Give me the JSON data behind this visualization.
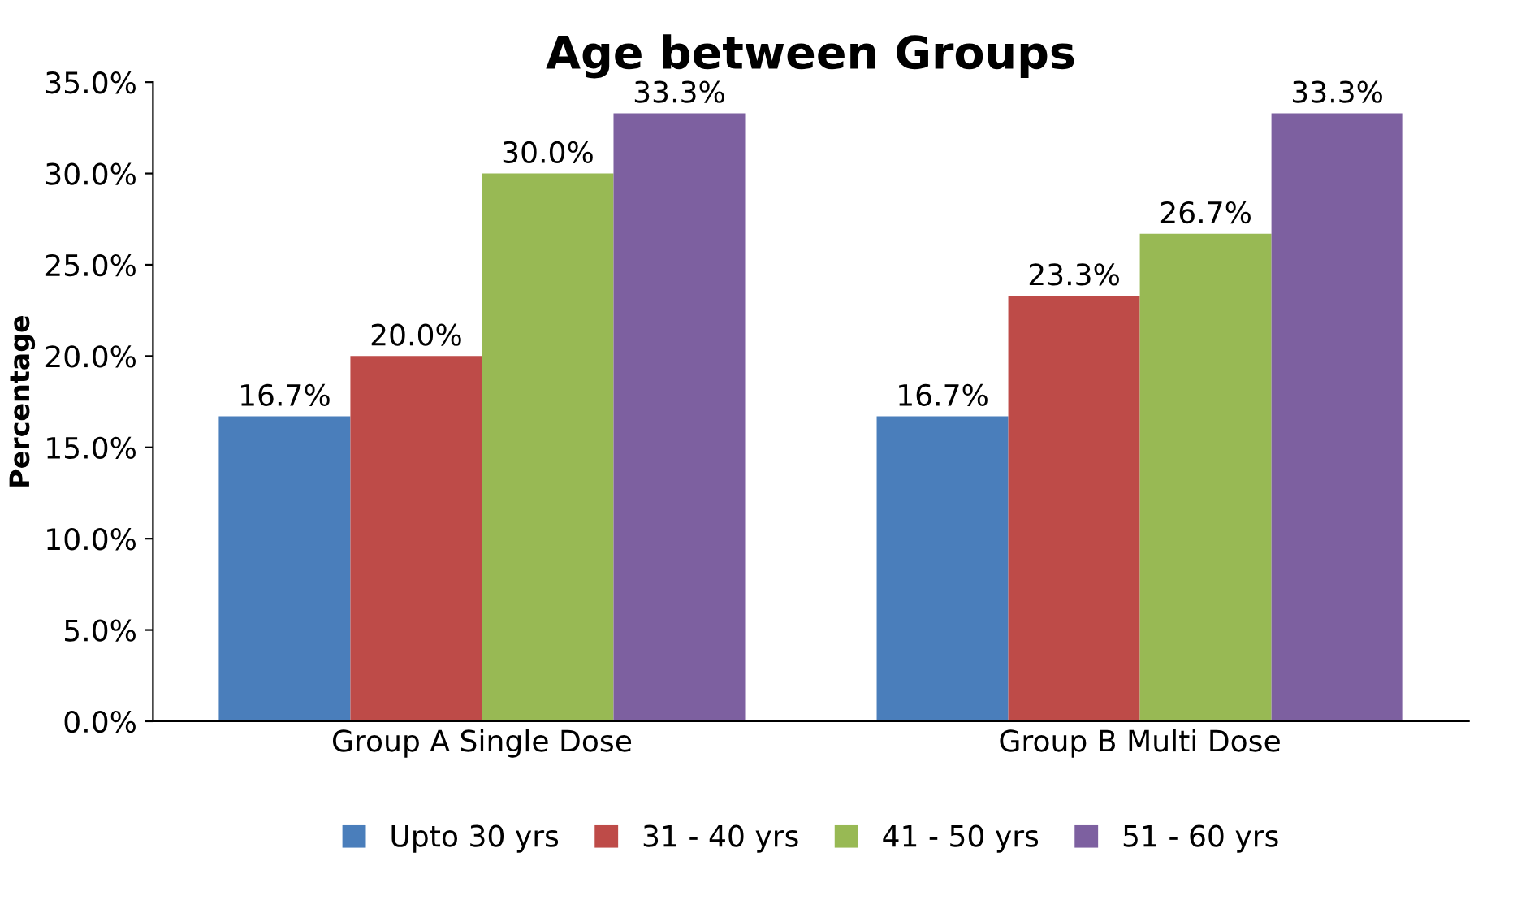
{
  "chart_data": {
    "type": "bar",
    "title": "Age between Groups",
    "ylabel": "Percentage",
    "categories": [
      "Group A Single Dose",
      "Group B Multi Dose"
    ],
    "series": [
      {
        "name": "Upto 30 yrs",
        "color": "#4a7ebb",
        "values": [
          16.7,
          16.7
        ],
        "value_labels": [
          "16.7%",
          "16.7%"
        ]
      },
      {
        "name": "31 - 40 yrs",
        "color": "#be4b48",
        "values": [
          20.0,
          23.3
        ],
        "value_labels": [
          "20.0%",
          "23.3%"
        ]
      },
      {
        "name": "41 - 50 yrs",
        "color": "#98b954",
        "values": [
          30.0,
          26.7
        ],
        "value_labels": [
          "30.0%",
          "26.7%"
        ]
      },
      {
        "name": "51 - 60 yrs",
        "color": "#7d60a0",
        "values": [
          33.3,
          33.3
        ],
        "value_labels": [
          "33.3%",
          "33.3%"
        ]
      }
    ],
    "ylim": [
      0,
      35
    ],
    "yticks": [
      {
        "value": 0,
        "label": "0.0%"
      },
      {
        "value": 5,
        "label": "5.0%"
      },
      {
        "value": 10,
        "label": "10.0%"
      },
      {
        "value": 15,
        "label": "15.0%"
      },
      {
        "value": 20,
        "label": "20.0%"
      },
      {
        "value": 25,
        "label": "25.0%"
      },
      {
        "value": 30,
        "label": "30.0%"
      },
      {
        "value": 35,
        "label": "35.0%"
      }
    ],
    "grid": false,
    "legend": "bottom"
  }
}
